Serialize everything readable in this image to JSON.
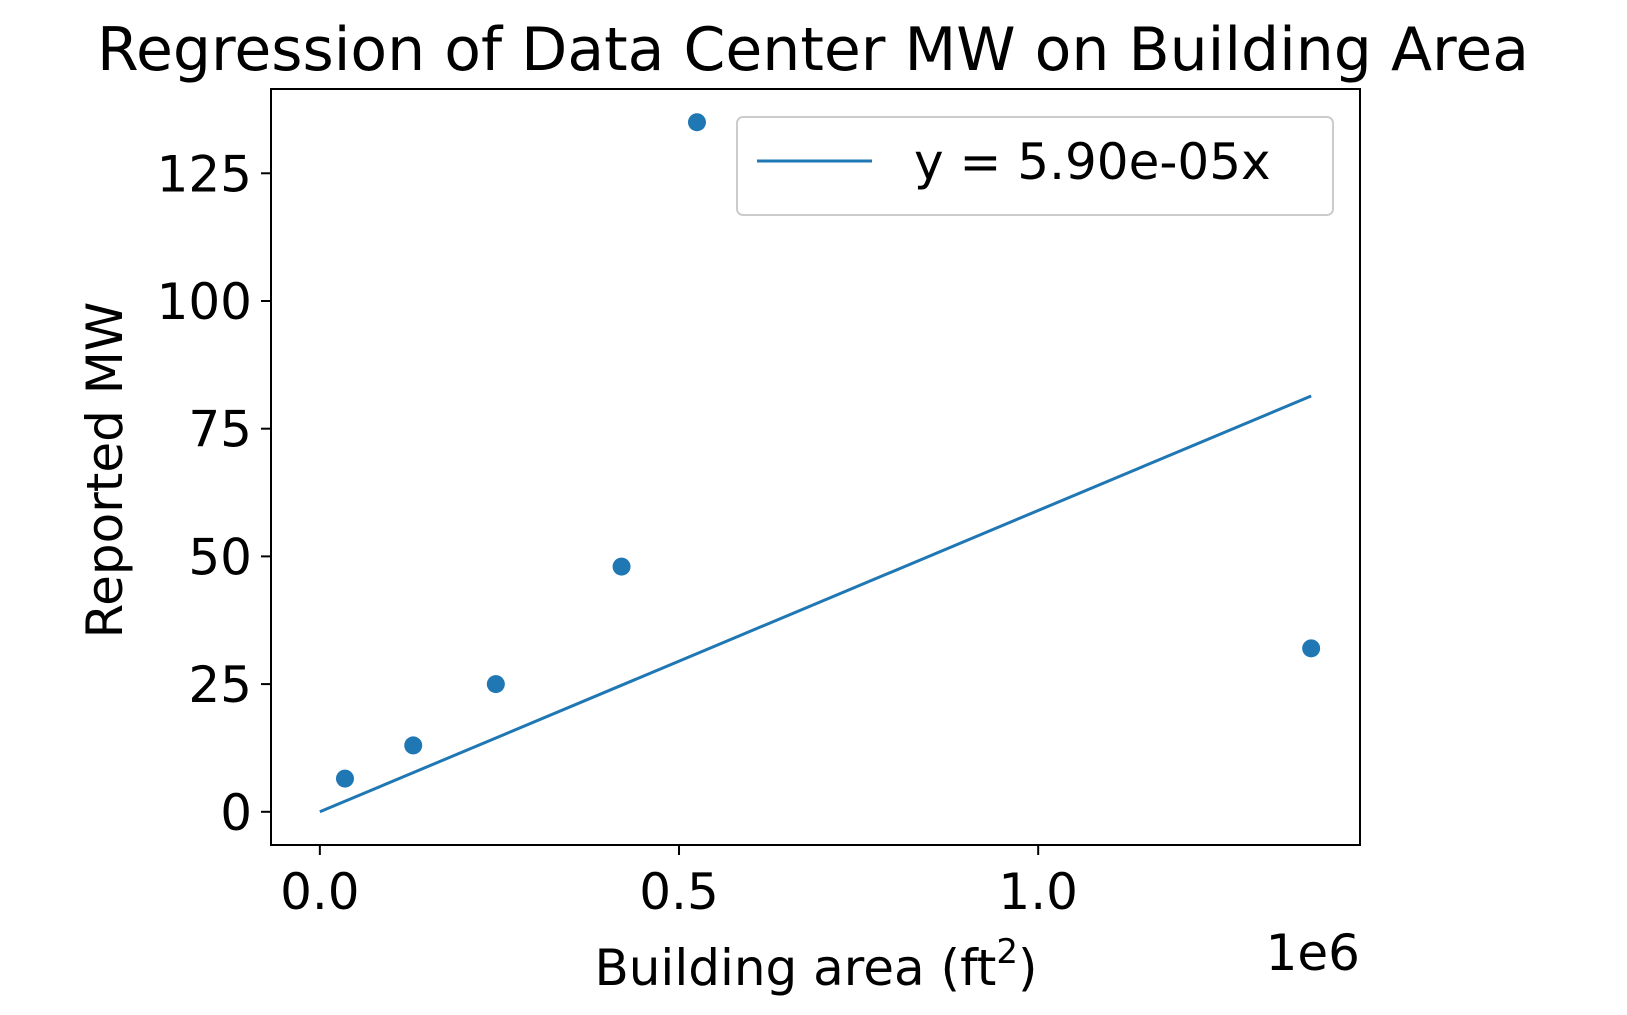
{
  "chart_data": {
    "type": "scatter",
    "title": "Regression of Data Center MW on Building Area",
    "xlabel": "Building area (ft",
    "xlabel_sup": "2",
    "xlabel_close": ")",
    "ylabel": "Reported MW",
    "x_offset_label": "1e6",
    "xlim": [
      -0.068,
      1.448
    ],
    "ylim": [
      -6.5,
      141.5
    ],
    "xticks": [
      0.0,
      0.5,
      1.0
    ],
    "xtick_labels": [
      "0.0",
      "0.5",
      "1.0"
    ],
    "yticks": [
      0,
      25,
      50,
      75,
      100,
      125
    ],
    "ytick_labels": [
      "0",
      "25",
      "50",
      "75",
      "100",
      "125"
    ],
    "points": [
      {
        "x": 0.035,
        "y": 6.5
      },
      {
        "x": 0.13,
        "y": 13
      },
      {
        "x": 0.245,
        "y": 25
      },
      {
        "x": 0.42,
        "y": 48
      },
      {
        "x": 0.525,
        "y": 135
      },
      {
        "x": 1.38,
        "y": 32
      }
    ],
    "fit_line": {
      "x": [
        0.0,
        1.38
      ],
      "y": [
        0.0,
        81.4
      ]
    },
    "legend": {
      "label": "y = 5.90e-05x",
      "position": "top-right"
    },
    "grid": false,
    "colors": {
      "series": "#1f77b4",
      "axes": "#000000",
      "legend_border": "#cccccc"
    }
  }
}
